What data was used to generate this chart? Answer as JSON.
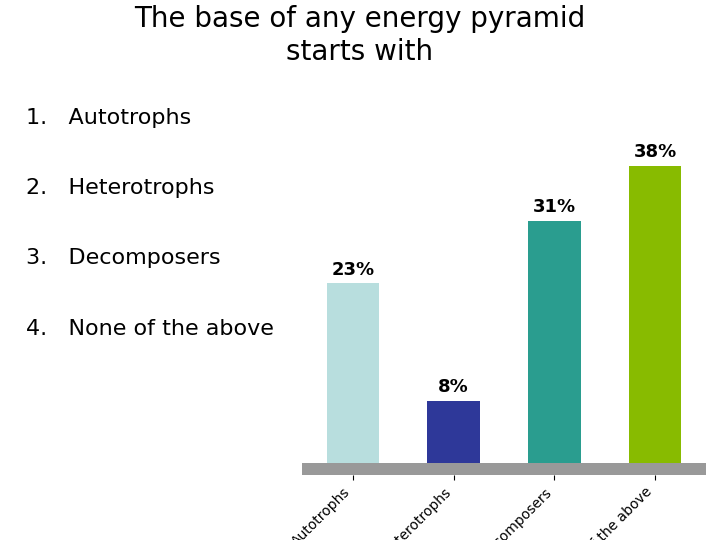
{
  "title": "The base of any energy pyramid\nstarts with",
  "list_items": [
    "1.   Autotrophs",
    "2.   Heterotrophs",
    "3.   Decomposers",
    "4.   None of the above"
  ],
  "categories": [
    "Autotrophs",
    "Heterotrophs",
    "Decomposers",
    "None of\nthe above"
  ],
  "tick_labels": [
    "Autotrophs",
    "Heterotrophs",
    "Decomposers",
    "None of the above"
  ],
  "values": [
    23,
    8,
    31,
    38
  ],
  "bar_colors": [
    "#b8dede",
    "#2e3899",
    "#2a9d8f",
    "#88bb00"
  ],
  "background_color": "#ffffff",
  "platform_color": "#999999",
  "title_fontsize": 20,
  "list_fontsize": 16,
  "label_fontsize": 13,
  "tick_fontsize": 10
}
